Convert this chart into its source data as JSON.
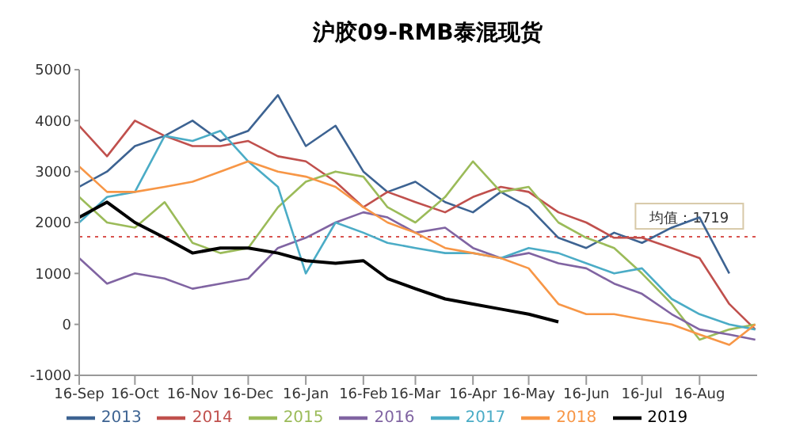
{
  "chart_data": {
    "type": "line",
    "title": "沪胶09-RMB泰混现货",
    "x": [
      "2018-09-16",
      "2018-10-01",
      "2018-10-16",
      "2018-11-01",
      "2018-11-16",
      "2018-12-01",
      "2018-12-16",
      "2019-01-01",
      "2019-01-16",
      "2019-02-01",
      "2019-02-16",
      "2019-03-01",
      "2019-03-16",
      "2019-04-01",
      "2019-04-16",
      "2019-05-01",
      "2019-05-16",
      "2019-06-01",
      "2019-06-16",
      "2019-07-01",
      "2019-07-16",
      "2019-08-01",
      "2019-08-16",
      "2019-09-01",
      "2019-09-15"
    ],
    "series": [
      {
        "name": "2013",
        "color": "#3d6392",
        "values": [
          2700,
          3000,
          3500,
          3700,
          4000,
          3600,
          3800,
          4500,
          3500,
          3900,
          3000,
          2600,
          2800,
          2400,
          2200,
          2600,
          2300,
          1700,
          1500,
          1800,
          1600,
          1900,
          2100,
          1000,
          null
        ]
      },
      {
        "name": "2014",
        "color": "#c0504d",
        "values": [
          3900,
          3300,
          4000,
          3700,
          3500,
          3500,
          3600,
          3300,
          3200,
          2800,
          2300,
          2600,
          2400,
          2200,
          2500,
          2700,
          2600,
          2200,
          2000,
          1700,
          1700,
          1500,
          1300,
          400,
          -100
        ]
      },
      {
        "name": "2015",
        "color": "#9bbb59",
        "values": [
          2500,
          2000,
          1900,
          2400,
          1600,
          1400,
          1500,
          2300,
          2800,
          3000,
          2900,
          2300,
          2000,
          2500,
          3200,
          2600,
          2700,
          2000,
          1700,
          1500,
          1000,
          400,
          -300,
          -100,
          0
        ]
      },
      {
        "name": "2016",
        "color": "#8064a2",
        "values": [
          1300,
          800,
          1000,
          900,
          700,
          800,
          900,
          1500,
          1700,
          2000,
          2200,
          2100,
          1800,
          1900,
          1500,
          1300,
          1400,
          1200,
          1100,
          800,
          600,
          200,
          -100,
          -200,
          -300
        ]
      },
      {
        "name": "2017",
        "color": "#4bacc6",
        "values": [
          2000,
          2500,
          2600,
          3700,
          3600,
          3800,
          3200,
          2700,
          1000,
          2000,
          1800,
          1600,
          1500,
          1400,
          1400,
          1300,
          1500,
          1400,
          1200,
          1000,
          1100,
          500,
          200,
          0,
          -100
        ]
      },
      {
        "name": "2018",
        "color": "#f79646",
        "values": [
          3100,
          2600,
          2600,
          2700,
          2800,
          3000,
          3200,
          3000,
          2900,
          2700,
          2300,
          2000,
          1800,
          1500,
          1400,
          1300,
          1100,
          400,
          200,
          200,
          100,
          0,
          -200,
          -400,
          0
        ]
      },
      {
        "name": "2019",
        "color": "#000000",
        "values": [
          2100,
          2400,
          2000,
          1700,
          1400,
          1500,
          1500,
          1400,
          1250,
          1200,
          1250,
          900,
          700,
          500,
          400,
          300,
          200,
          50,
          null,
          null,
          null,
          null,
          null,
          null,
          null
        ]
      }
    ],
    "xlim": [
      "2018-09-16",
      "2019-09-16"
    ],
    "xticks": [
      {
        "value": "2018-09-16",
        "label": "16-Sep"
      },
      {
        "value": "2018-10-16",
        "label": "16-Oct"
      },
      {
        "value": "2018-11-16",
        "label": "16-Nov"
      },
      {
        "value": "2018-12-16",
        "label": "16-Dec"
      },
      {
        "value": "2019-01-16",
        "label": "16-Jan"
      },
      {
        "value": "2019-02-16",
        "label": "16-Feb"
      },
      {
        "value": "2019-03-16",
        "label": "16-Mar"
      },
      {
        "value": "2019-04-16",
        "label": "16-Apr"
      },
      {
        "value": "2019-05-16",
        "label": "16-May"
      },
      {
        "value": "2019-06-16",
        "label": "16-Jun"
      },
      {
        "value": "2019-07-16",
        "label": "16-Jul"
      },
      {
        "value": "2019-08-16",
        "label": "16-Aug"
      }
    ],
    "ylim": [
      -1000,
      5000
    ],
    "yticks": [
      -1000,
      0,
      1000,
      2000,
      3000,
      4000,
      5000
    ],
    "ref_lines": [
      {
        "axis": "y",
        "value": 1719,
        "label": "均值：1719",
        "color": "#d9534f",
        "line_style": "dotted"
      }
    ],
    "legend": "bottom",
    "marker": "none",
    "line_style": "solid"
  }
}
